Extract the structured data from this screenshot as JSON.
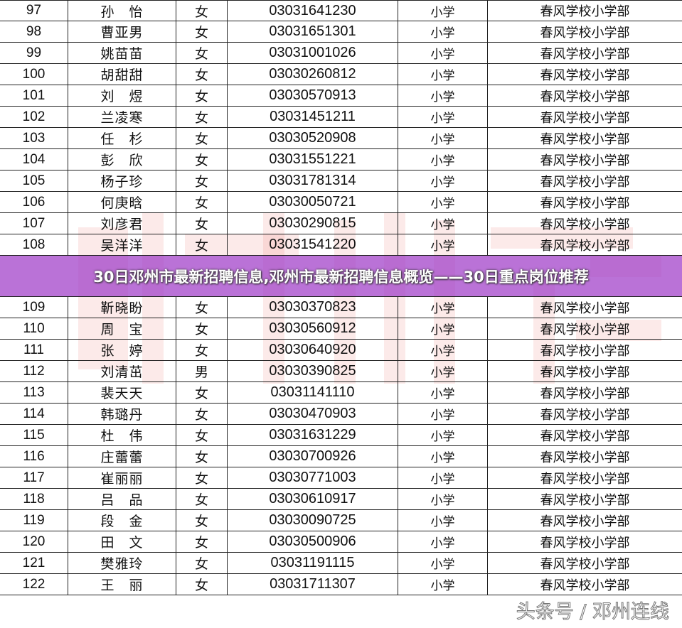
{
  "banner_title": "30日邓州市最新招聘信息,邓州市最新招聘信息概览——30日重点岗位推荐",
  "watermark": "邓州连线",
  "credit": "头条号 / 邓州连线",
  "rows": [
    {
      "num": "97",
      "name": "孙　怡",
      "gender": "女",
      "id": "03031641230",
      "level": "小学",
      "school": "春风学校小学部"
    },
    {
      "num": "98",
      "name": "曹亚男",
      "gender": "女",
      "id": "03031651301",
      "level": "小学",
      "school": "春风学校小学部"
    },
    {
      "num": "99",
      "name": "姚苗苗",
      "gender": "女",
      "id": "03031001026",
      "level": "小学",
      "school": "春风学校小学部"
    },
    {
      "num": "100",
      "name": "胡甜甜",
      "gender": "女",
      "id": "03030260812",
      "level": "小学",
      "school": "春风学校小学部"
    },
    {
      "num": "101",
      "name": "刘　煜",
      "gender": "女",
      "id": "03030570913",
      "level": "小学",
      "school": "春风学校小学部"
    },
    {
      "num": "102",
      "name": "兰凌寒",
      "gender": "女",
      "id": "03031451211",
      "level": "小学",
      "school": "春风学校小学部"
    },
    {
      "num": "103",
      "name": "任　杉",
      "gender": "女",
      "id": "03030520908",
      "level": "小学",
      "school": "春风学校小学部"
    },
    {
      "num": "104",
      "name": "彭　欣",
      "gender": "女",
      "id": "03031551221",
      "level": "小学",
      "school": "春风学校小学部"
    },
    {
      "num": "105",
      "name": "杨子珍",
      "gender": "女",
      "id": "03031781314",
      "level": "小学",
      "school": "春风学校小学部"
    },
    {
      "num": "106",
      "name": "何庚晗",
      "gender": "女",
      "id": "03030050721",
      "level": "小学",
      "school": "春风学校小学部"
    },
    {
      "num": "107",
      "name": "刘彦君",
      "gender": "女",
      "id": "03030290815",
      "level": "小学",
      "school": "春风学校小学部"
    },
    {
      "num": "108",
      "name": "吴洋洋",
      "gender": "女",
      "id": "03031541220",
      "level": "小学",
      "school": "春风学校小学部"
    },
    {
      "num": "109",
      "name": "靳晓盼",
      "gender": "女",
      "id": "03030370823",
      "level": "小学",
      "school": "春风学校小学部"
    },
    {
      "num": "110",
      "name": "周　宝",
      "gender": "女",
      "id": "03030560912",
      "level": "小学",
      "school": "春风学校小学部"
    },
    {
      "num": "111",
      "name": "张　婷",
      "gender": "女",
      "id": "03030640920",
      "level": "小学",
      "school": "春风学校小学部"
    },
    {
      "num": "112",
      "name": "刘清茁",
      "gender": "男",
      "id": "03030390825",
      "level": "小学",
      "school": "春风学校小学部"
    },
    {
      "num": "113",
      "name": "裴天天",
      "gender": "女",
      "id": "03031141110",
      "level": "小学",
      "school": "春风学校小学部"
    },
    {
      "num": "114",
      "name": "韩璐丹",
      "gender": "女",
      "id": "03030470903",
      "level": "小学",
      "school": "春风学校小学部"
    },
    {
      "num": "115",
      "name": "杜　伟",
      "gender": "女",
      "id": "03031631229",
      "level": "小学",
      "school": "春风学校小学部"
    },
    {
      "num": "116",
      "name": "庄蕾蕾",
      "gender": "女",
      "id": "03030700926",
      "level": "小学",
      "school": "春风学校小学部"
    },
    {
      "num": "117",
      "name": "崔丽丽",
      "gender": "女",
      "id": "03030771003",
      "level": "小学",
      "school": "春风学校小学部"
    },
    {
      "num": "118",
      "name": "吕　品",
      "gender": "女",
      "id": "03030610917",
      "level": "小学",
      "school": "春风学校小学部"
    },
    {
      "num": "119",
      "name": "段　金",
      "gender": "女",
      "id": "03030090725",
      "level": "小学",
      "school": "春风学校小学部"
    },
    {
      "num": "120",
      "name": "田　文",
      "gender": "女",
      "id": "03030500906",
      "level": "小学",
      "school": "春风学校小学部"
    },
    {
      "num": "121",
      "name": "樊雅玲",
      "gender": "女",
      "id": "03031191115",
      "level": "小学",
      "school": "春风学校小学部"
    },
    {
      "num": "122",
      "name": "王　丽",
      "gender": "女",
      "id": "03031711307",
      "level": "小学",
      "school": "春风学校小学部"
    }
  ]
}
